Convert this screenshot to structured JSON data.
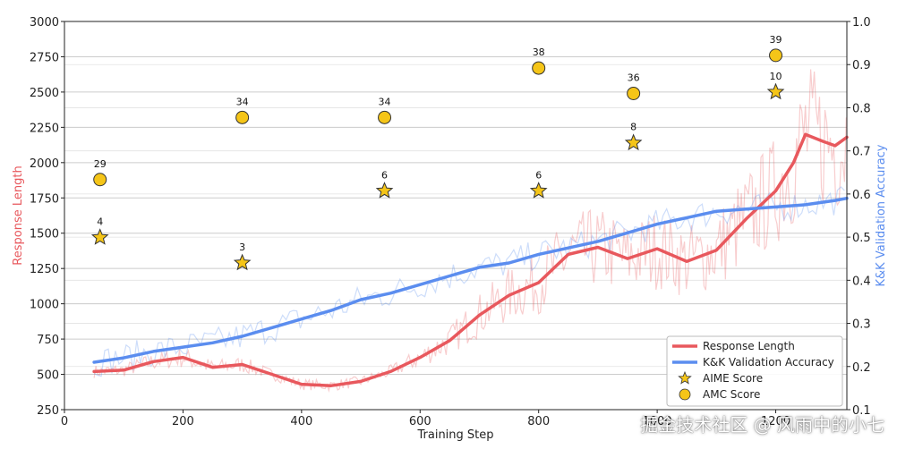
{
  "chart_data": {
    "type": "line",
    "xlabel": "Training Step",
    "ylabel_left": "Response Length",
    "ylabel_right": "K&K Validation Accuracy",
    "xlim": [
      0,
      1320
    ],
    "ylim_left": [
      250,
      3000
    ],
    "ylim_right": [
      0.1,
      1.0
    ],
    "x_ticks": [
      0,
      200,
      400,
      600,
      800,
      1000,
      1200
    ],
    "x_tick_labels": [
      "0",
      "200",
      "400",
      "600",
      "800",
      "1000",
      "1200"
    ],
    "y_left_ticks": [
      250,
      500,
      750,
      1000,
      1250,
      1500,
      1750,
      2000,
      2250,
      2500,
      2750,
      3000
    ],
    "y_right_ticks": [
      0.1,
      0.2,
      0.3,
      0.4,
      0.5,
      0.6,
      0.7,
      0.8,
      0.9,
      1.0
    ],
    "grid": true,
    "legend_position": "bottom-right",
    "series": [
      {
        "name": "Response Length",
        "axis": "left",
        "color": "#e8585d",
        "x": [
          50,
          100,
          150,
          200,
          250,
          300,
          350,
          400,
          450,
          500,
          550,
          600,
          650,
          700,
          750,
          800,
          850,
          900,
          950,
          1000,
          1050,
          1100,
          1150,
          1200,
          1230,
          1250,
          1280,
          1300,
          1320
        ],
        "values": [
          520,
          530,
          590,
          620,
          550,
          570,
          500,
          430,
          420,
          450,
          520,
          620,
          740,
          920,
          1060,
          1150,
          1350,
          1400,
          1320,
          1390,
          1300,
          1380,
          1600,
          1800,
          2000,
          2200,
          2150,
          2120,
          2180
        ]
      },
      {
        "name": "K&K Validation Accuracy",
        "axis": "right",
        "color": "#5b8def",
        "x": [
          50,
          100,
          150,
          200,
          250,
          300,
          350,
          400,
          450,
          500,
          550,
          600,
          650,
          700,
          750,
          800,
          850,
          900,
          950,
          1000,
          1050,
          1100,
          1150,
          1200,
          1250,
          1300,
          1320
        ],
        "values": [
          0.21,
          0.22,
          0.235,
          0.245,
          0.255,
          0.27,
          0.29,
          0.31,
          0.33,
          0.355,
          0.37,
          0.39,
          0.41,
          0.43,
          0.44,
          0.46,
          0.475,
          0.49,
          0.51,
          0.53,
          0.545,
          0.56,
          0.565,
          0.57,
          0.575,
          0.585,
          0.59
        ]
      },
      {
        "name": "AIME Score",
        "type": "scatter",
        "marker": "star",
        "axis": "left",
        "color": "#f5c518",
        "x": [
          60,
          300,
          540,
          800,
          960,
          1200
        ],
        "values": [
          1470,
          1290,
          1800,
          1800,
          2140,
          2500
        ],
        "labels": [
          "4",
          "3",
          "6",
          "6",
          "8",
          "10"
        ]
      },
      {
        "name": "AMC Score",
        "type": "scatter",
        "marker": "circle",
        "axis": "left",
        "color": "#f5c518",
        "x": [
          60,
          300,
          540,
          800,
          960,
          1200
        ],
        "values": [
          1880,
          2320,
          2320,
          2670,
          2490,
          2760
        ],
        "labels": [
          "29",
          "34",
          "34",
          "38",
          "36",
          "39"
        ]
      }
    ]
  },
  "watermark": "掘金技术社区 @ 风雨中的小七"
}
